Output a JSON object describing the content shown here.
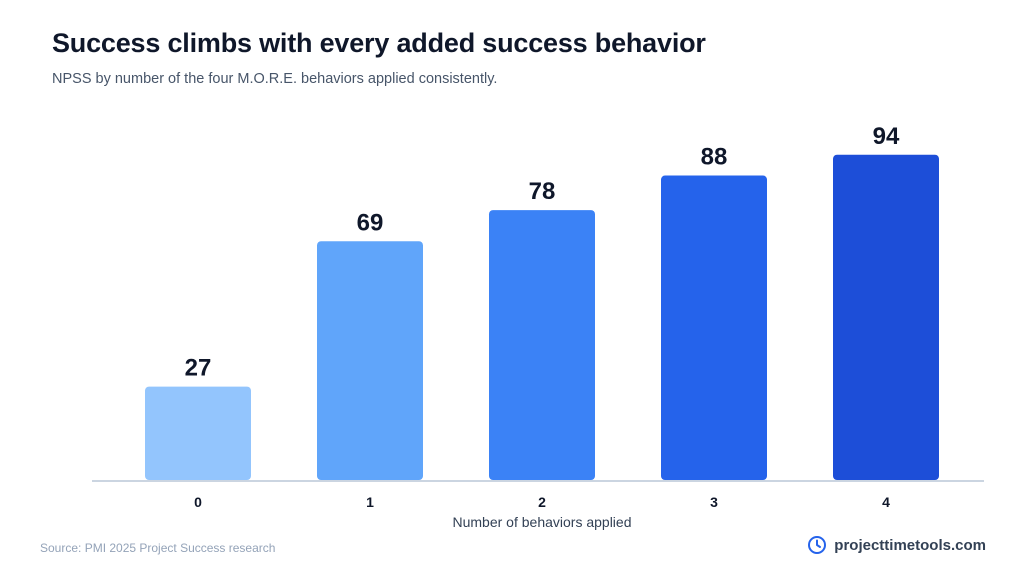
{
  "header": {
    "title": "Success climbs with every added success behavior",
    "subtitle": "NPSS by number of the four M.O.R.E. behaviors applied consistently."
  },
  "chart_data": {
    "type": "bar",
    "title": "Success climbs with every added success behavior",
    "subtitle": "NPSS by number of the four M.O.R.E. behaviors applied consistently.",
    "categories": [
      "0",
      "1",
      "2",
      "3",
      "4"
    ],
    "values": [
      27,
      69,
      78,
      88,
      94
    ],
    "data_labels": [
      "27",
      "69",
      "78",
      "88",
      "94"
    ],
    "xlabel": "Number of behaviors applied",
    "ylabel": "",
    "ylim": [
      0,
      100
    ],
    "grid": false,
    "legend": "none",
    "bar_colors": [
      "#93c5fd",
      "#60a5fa",
      "#3b82f6",
      "#2563eb",
      "#1d4ed8"
    ],
    "axis_color": "#cbd5e1"
  },
  "footer": {
    "source": "Source: PMI 2025 Project Success research",
    "brand": "projecttimetools.com",
    "brand_icon": "clock-icon",
    "brand_color": "#2563eb"
  }
}
